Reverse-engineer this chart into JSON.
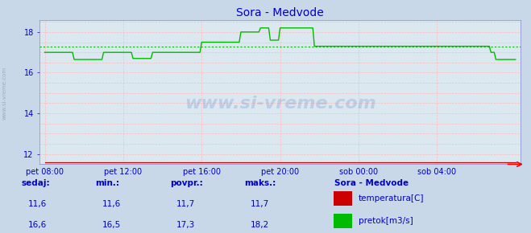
{
  "title": "Sora - Medvode",
  "title_color": "#0000cc",
  "bg_color": "#c8d8e8",
  "plot_bg_color": "#dce8f0",
  "ylim": [
    11.5,
    18.6
  ],
  "yticks": [
    12,
    14,
    16,
    18
  ],
  "xtick_labels": [
    "pet 08:00",
    "pet 12:00",
    "pet 16:00",
    "pet 20:00",
    "sob 00:00",
    "sob 04:00"
  ],
  "xtick_positions": [
    0,
    16,
    32,
    48,
    64,
    80
  ],
  "total_points": 96,
  "temp_value": 11.6,
  "temp_color": "#cc0000",
  "pretok_avg": 17.3,
  "pretok_color": "#00bb00",
  "pretok_avg_color": "#00bb00",
  "watermark": "www.si-vreme.com",
  "legend_title": "Sora - Medvode",
  "legend_label1": "temperatura[C]",
  "legend_label2": "pretok[m3/s]",
  "stats_headers": [
    "sedaj:",
    "min.:",
    "povpr.:",
    "maks.:"
  ],
  "stats_temp": [
    "11,6",
    "11,6",
    "11,7",
    "11,7"
  ],
  "stats_pretok": [
    "16,6",
    "16,5",
    "17,3",
    "18,2"
  ],
  "text_color": "#0000cc",
  "grid_h_color": "#ffbbbb",
  "grid_v_color": "#ffbbbb",
  "spine_color": "#8888cc"
}
